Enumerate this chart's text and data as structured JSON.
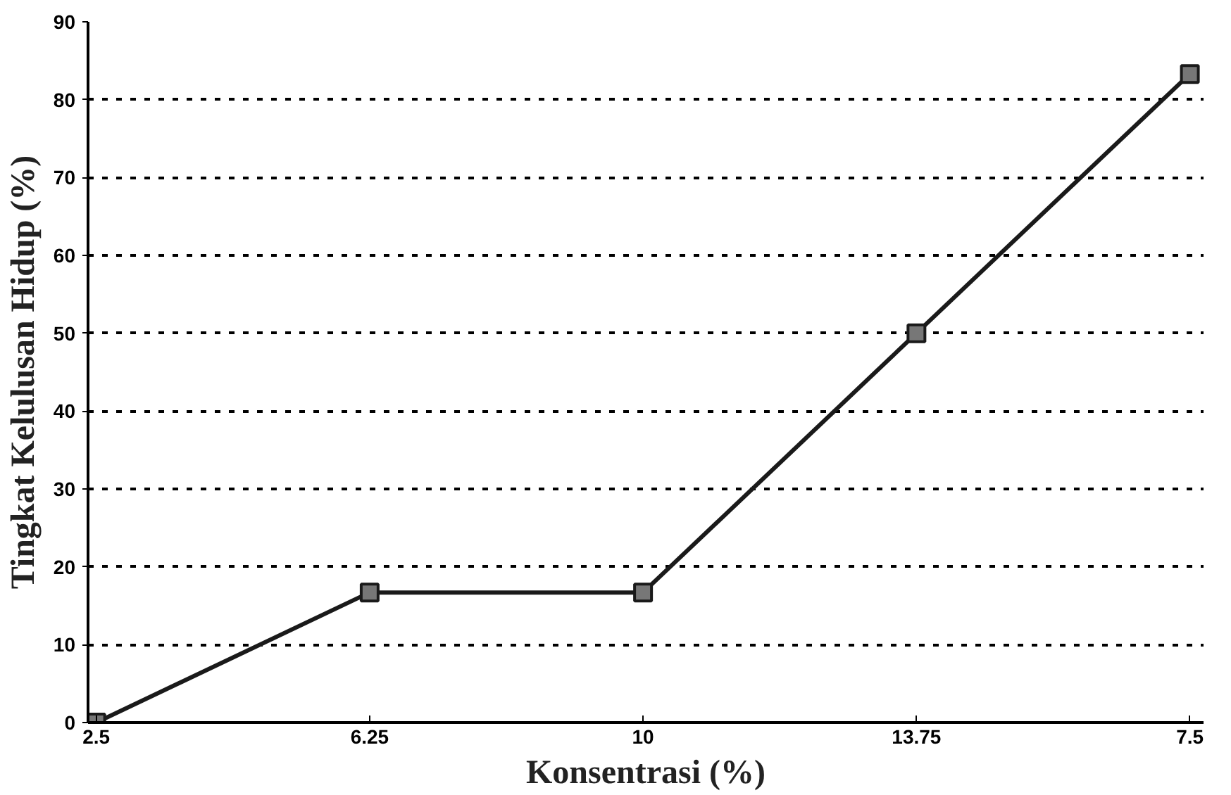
{
  "chart_data": {
    "type": "line",
    "xlabel": "Konsentrasi (%)",
    "ylabel": "Tingkat Kelulusan Hidup (%)",
    "categories": [
      "2.5",
      "6.25",
      "10",
      "13.75",
      "7.5"
    ],
    "series": [
      {
        "color": "#1a1a1a",
        "values": [
          0,
          16.7,
          16.7,
          50,
          83.3
        ]
      }
    ],
    "ylim": [
      0,
      90
    ],
    "yticks": [
      0,
      10,
      20,
      30,
      40,
      50,
      60,
      70,
      80,
      90
    ],
    "grid": "y",
    "marker": "square",
    "line_style": "solid"
  }
}
